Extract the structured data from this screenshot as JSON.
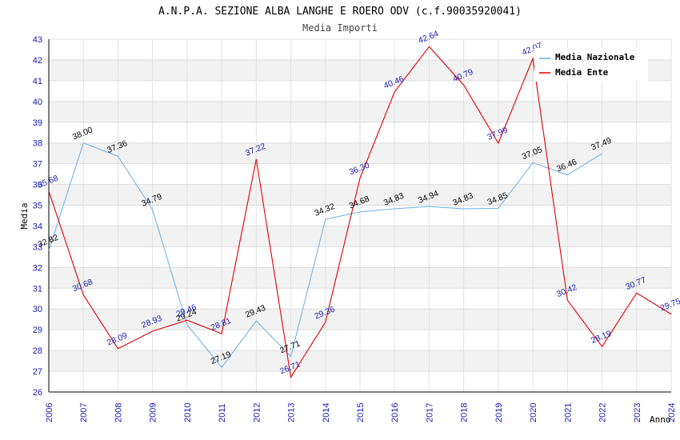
{
  "chart_data": {
    "type": "line",
    "title": "A.N.P.A. SEZIONE ALBA LANGHE E ROERO ODV (c.f.90035920041)",
    "subtitle": "Media Importi",
    "xlabel": "Anno",
    "ylabel": "Media",
    "ylim": [
      26,
      43
    ],
    "y_ticks": [
      "26",
      "27",
      "28",
      "29",
      "30",
      "31",
      "32",
      "33",
      "34",
      "35",
      "36",
      "37",
      "38",
      "39",
      "40",
      "41",
      "42",
      "43"
    ],
    "x": [
      "2006",
      "2007",
      "2008",
      "2009",
      "2010",
      "2011",
      "2012",
      "2013",
      "2014",
      "2015",
      "2016",
      "2017",
      "2018",
      "2019",
      "2020",
      "2021",
      "2022",
      "2023",
      "2024"
    ],
    "legend_position": "top-right",
    "series": [
      {
        "name": "Media Nazionale",
        "color": "#6aaee8",
        "values": [
          32.82,
          38.0,
          37.36,
          34.79,
          29.24,
          27.19,
          29.43,
          27.71,
          34.32,
          34.68,
          34.83,
          34.94,
          34.83,
          34.85,
          37.05,
          36.46,
          37.49,
          null,
          null
        ],
        "labels": [
          "32.82",
          "38.00",
          "37.36",
          "34.79",
          "29.24",
          "27.19",
          "29.43",
          "27.71",
          "34.32",
          "34.68",
          "34.83",
          "34.94",
          "34.83",
          "34.85",
          "37.05",
          "36.46",
          "37.49",
          "",
          ""
        ]
      },
      {
        "name": "Media Ente",
        "color": "#e00000",
        "values": [
          35.68,
          30.68,
          28.09,
          28.93,
          29.46,
          28.81,
          37.22,
          26.71,
          29.36,
          36.3,
          40.46,
          42.64,
          40.79,
          37.99,
          42.07,
          30.42,
          28.19,
          30.77,
          29.75
        ],
        "labels": [
          "35.68",
          "30.68",
          "28.09",
          "28.93",
          "29.46",
          "28.81",
          "37.22",
          "26.71",
          "29.36",
          "36.30",
          "40.46",
          "42.64",
          "40.79",
          "37.99",
          "42.07",
          "30.42",
          "28.19",
          "30.77",
          "29.75"
        ]
      }
    ]
  }
}
